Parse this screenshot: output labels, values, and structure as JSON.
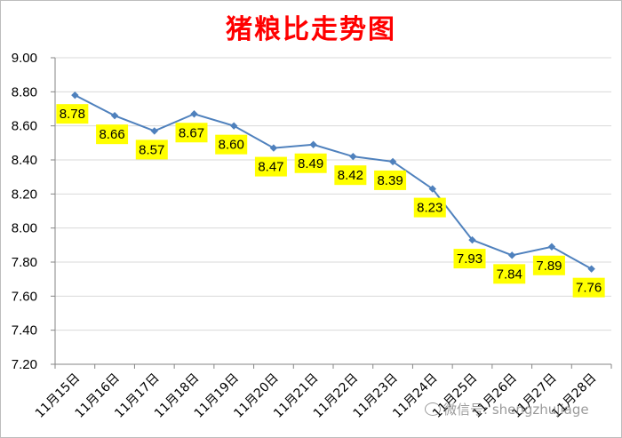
{
  "chart_data": {
    "type": "line",
    "title": "猪粮比走势图",
    "categories": [
      "11月15日",
      "11月16日",
      "11月17日",
      "11月18日",
      "11月19日",
      "11月20日",
      "11月21日",
      "11月22日",
      "11月23日",
      "11月24日",
      "11月25日",
      "11月26日",
      "11月27日",
      "11月28日"
    ],
    "values": [
      8.78,
      8.66,
      8.57,
      8.67,
      8.6,
      8.47,
      8.49,
      8.42,
      8.39,
      8.23,
      7.93,
      7.84,
      7.89,
      7.76
    ],
    "data_labels": [
      "8.78",
      "8.66",
      "8.57",
      "8.67",
      "8.60",
      "8.47",
      "8.49",
      "8.42",
      "8.39",
      "8.23",
      "7.93",
      "7.84",
      "7.89",
      "7.76"
    ],
    "ylim": [
      7.2,
      9.0
    ],
    "yticks": [
      "9.00",
      "8.80",
      "8.60",
      "8.40",
      "8.20",
      "8.00",
      "7.80",
      "7.60",
      "7.40",
      "7.20"
    ],
    "ytick_values": [
      9.0,
      8.8,
      8.6,
      8.4,
      8.2,
      8.0,
      7.8,
      7.6,
      7.4,
      7.2
    ],
    "grid": true,
    "legend": "none",
    "colors": {
      "line": "#4f81bd",
      "label_bg": "#ffff00",
      "title": "#ff0000",
      "grid": "#d9d9d9"
    }
  },
  "watermark": {
    "icon": "wechat-icon",
    "text": "微信号: shengzhujiage"
  }
}
